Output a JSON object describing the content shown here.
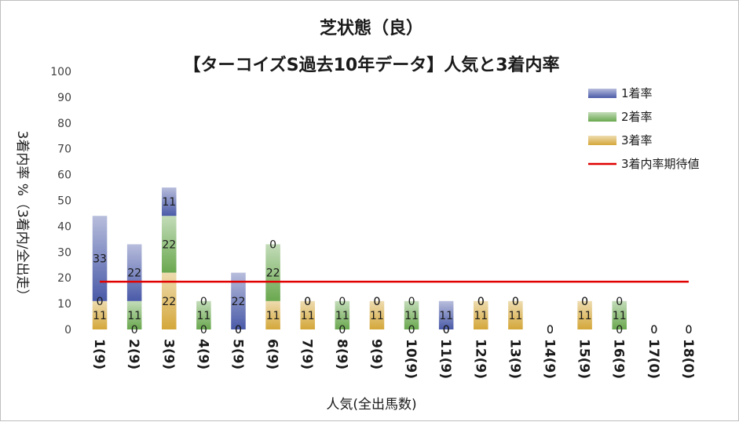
{
  "chart_data": {
    "type": "bar",
    "title": "芝状態（良）",
    "subtitle": "【ターコイズS過去10年データ】人気と3着内率",
    "xlabel": "人気(全出馬数)",
    "ylabel": "3着内率 %（3着内/全出走）",
    "ylim": [
      0,
      100
    ],
    "yticks": [
      0,
      10,
      20,
      30,
      40,
      50,
      60,
      70,
      80,
      90,
      100
    ],
    "grid": false,
    "legend_position": "top-right",
    "categories": [
      "1(9)",
      "2(9)",
      "3(9)",
      "4(9)",
      "5(9)",
      "6(9)",
      "7(9)",
      "8(9)",
      "9(9)",
      "10(9)",
      "11(9)",
      "12(9)",
      "13(9)",
      "14(9)",
      "15(9)",
      "16(9)",
      "17(0)",
      "18(0)"
    ],
    "series": [
      {
        "name": "3着率",
        "values": [
          11,
          0,
          22,
          0,
          0,
          11,
          11,
          0,
          11,
          0,
          0,
          11,
          11,
          0,
          11,
          0,
          0,
          0
        ],
        "color": "#d4a73a"
      },
      {
        "name": "2着率",
        "values": [
          0,
          11,
          22,
          11,
          0,
          22,
          0,
          11,
          0,
          11,
          0,
          0,
          0,
          0,
          0,
          11,
          0,
          0
        ],
        "color": "#6aa84f"
      },
      {
        "name": "1着率",
        "values": [
          33,
          22,
          11,
          0,
          22,
          0,
          0,
          0,
          0,
          0,
          11,
          0,
          0,
          0,
          0,
          0,
          0,
          0
        ],
        "color": "#4a5aa8"
      }
    ],
    "expected_line": {
      "name": "3着内率期待値",
      "value": 18.5,
      "color": "#e00000"
    }
  }
}
